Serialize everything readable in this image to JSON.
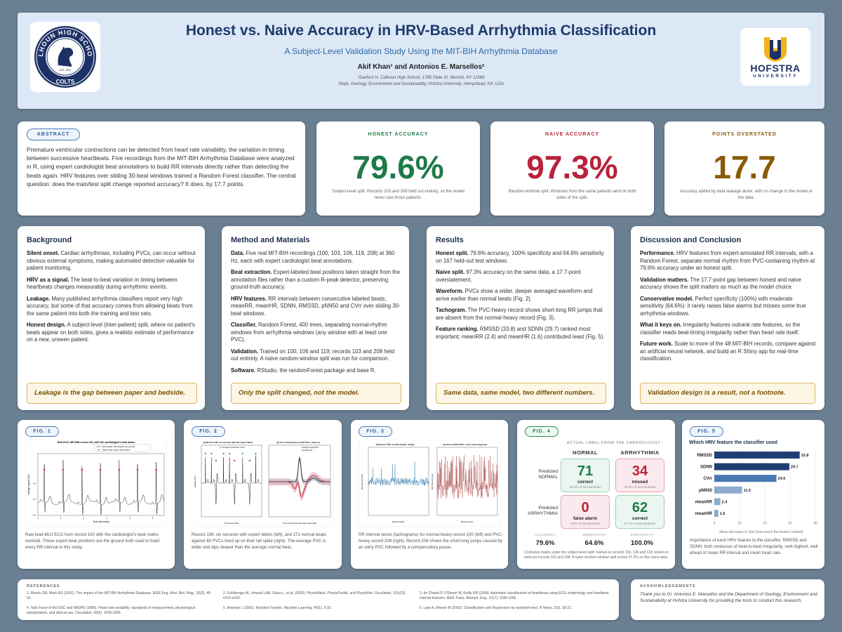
{
  "header": {
    "title": "Honest vs. Naive Accuracy in HRV-Based Arrhythmia Classification",
    "subtitle": "A Subject-Level Validation Study Using the MIT-BIH Arrhythmia Database",
    "authors": "Akif Khan¹   and   Antonios E. Marsellos²",
    "aff1": "¹Sanford H. Calhoun High School, 1786 State St, Merrick, NY 11566",
    "aff2": "²Dept. Geology, Environment and Sustainability, Hofstra University, Hempstead, NY, USA",
    "left_logo_text": "CALHOUN HIGH SCHOOL",
    "left_logo_sub": "COLTS",
    "left_logo_year": "EST. 1952",
    "right_logo_name": "HOFSTRA",
    "right_logo_sub": "UNIVERSITY"
  },
  "abstract": {
    "label": "ABSTRACT",
    "text": "Premature ventricular contractions can be detected from heart rate variability, the variation in timing between successive heartbeats. Five recordings from the MIT-BIH Arrhythmia Database were analyzed in R, using expert cardiologist beat annotations to build RR intervals directly rather than detecting the beats again. HRV features over sliding 30-beat windows trained a Random Forest classifier. The central question: does the train/test split change reported accuracy? It does, by 17.7 points."
  },
  "stats": [
    {
      "label": "HONEST ACCURACY",
      "value": "79.6%",
      "color": "#1e7a48",
      "note": "Subject-level split. Records 103 and 208 held out entirely, so the model never saw those patients."
    },
    {
      "label": "NAIVE ACCURACY",
      "value": "97.3%",
      "color": "#b8233a",
      "note": "Random-window split. Windows from the same patients land on both sides of the split."
    },
    {
      "label": "POINTS OVERSTATED",
      "value": "17.7",
      "color": "#8a5a06",
      "note": "Accuracy added by data leakage alone, with no change to the model or the data."
    }
  ],
  "sections": [
    {
      "title": "Background",
      "paras": [
        {
          "b": "Silent onset.",
          "t": " Cardiac arrhythmias, including PVCs, can occur without obvious external symptoms, making automated detection valuable for patient monitoring."
        },
        {
          "b": "HRV as a signal.",
          "t": " The beat-to-beat variation in timing between heartbeats changes measurably during arrhythmic events."
        },
        {
          "b": "Leakage.",
          "t": " Many published arrhythmia classifiers report very high accuracy, but some of that accuracy comes from allowing beats from the same patient into both the training and test sets."
        },
        {
          "b": "Honest design.",
          "t": " A subject-level (inter-patient) split, where no patient's beats appear on both sides, gives a realistic estimate of performance on a new, unseen patient."
        }
      ],
      "callout": "Leakage is the gap between paper and bedside."
    },
    {
      "title": "Method and Materials",
      "paras": [
        {
          "b": "Data.",
          "t": " Five real MIT-BIH recordings (100, 103, 106, 119, 208) at 360 Hz, each with expert cardiologist beat annotations."
        },
        {
          "b": "Beat extraction.",
          "t": " Expert-labeled beat positions taken straight from the annotation files rather than a custom R-peak detector, preserving ground-truth accuracy."
        },
        {
          "b": "HRV features.",
          "t": " RR intervals between consecutive labeled beats; meanRR, meanHR, SDNN, RMSSD, pNN50 and CVrr over sliding 30-beat windows."
        },
        {
          "b": "Classifier.",
          "t": " Random Forest, 400 trees, separating normal-rhythm windows from arrhythmia windows (any window with at least one PVC)."
        },
        {
          "b": "Validation.",
          "t": " Trained on 100, 106 and 119; records 103 and 208 held out entirely. A naive random-window split was run for comparison."
        },
        {
          "b": "Software.",
          "t": " RStudio, the randomForest package and base R."
        }
      ],
      "callout": "Only the split changed, not the model."
    },
    {
      "title": "Results",
      "paras": [
        {
          "b": "Honest split.",
          "t": " 79.6% accuracy, 100% specificity and 64.6% sensitivity on 167 held-out test windows."
        },
        {
          "b": "Naive split.",
          "t": " 97.3% accuracy on the same data, a 17.7-point overstatement."
        },
        {
          "b": "Waveform.",
          "t": " PVCs show a wider, deeper averaged waveform and arrive earlier than normal beats (Fig. 2)."
        },
        {
          "b": "Tachogram.",
          "t": " The PVC-heavy record shows short-long RR jumps that are absent from the normal-heavy record (Fig. 3)."
        },
        {
          "b": "Feature ranking.",
          "t": " RMSSD (33.8) and SDNN (29.7) ranked most important; meanRR (2.4) and meanHR (1.6) contributed least (Fig. 5)."
        }
      ],
      "callout": "Same data, same model, two different numbers."
    },
    {
      "title": "Discussion and Conclusion",
      "paras": [
        {
          "b": "Performance.",
          "t": " HRV features from expert-annotated RR intervals, with a Random Forest, separate normal rhythm from PVC-containing rhythm at 79.6% accuracy under an honest split."
        },
        {
          "b": "Validation matters.",
          "t": " The 17.7-point gap between honest and naive accuracy shows the split matters as much as the model choice."
        },
        {
          "b": "Conservative model.",
          "t": " Perfect specificity (100%) with moderate sensitivity (64.6%): it rarely raises false alarms but misses some true arrhythmia windows."
        },
        {
          "b": "What it keys on.",
          "t": " Irregularity features outrank rate features, so the classifier reads beat-timing irregularity rather than heart rate itself."
        },
        {
          "b": "Future work.",
          "t": " Scale to more of the 48 MIT-BIH records, compare against an artificial neural network, and build an R Shiny app for real-time classification."
        }
      ],
      "callout": "Validation design is a result, not a footnote."
    }
  ],
  "figures": {
    "f1": {
      "label": "FIG. 1",
      "caption": "Raw lead-MLII ECG from record 100 with the cardiologist's beat marks overlaid. These expert beat positions are the ground truth used to build every RR interval in this study.",
      "plot_title": "Real ECG, MIT-BIH record 100, with the cardiologist's beat marks",
      "legend1": "ECG signal, 360 samples per second",
      "legend2": "Expert beat marks used to label",
      "xlabel": "Time (seconds)",
      "ylabel": "Voltage signal (mV)",
      "xticks": [
        "0",
        "1",
        "2",
        "3",
        "4",
        "5"
      ],
      "yticks": [
        "0.5",
        "0.0",
        "-0.5",
        "-1.0"
      ]
    },
    "f2": {
      "label": "FIG. 2",
      "caption": "Record 106: six seconds with expert labels (left), and 271 normal beats against 60 PVCs lined up on their tall spike (right). The average PVC is wider and dips deeper than the average normal beat.",
      "left_title": "(a) Record 106: six seconds with the expert labels",
      "right_title": "(b) 271 normal beats and 60 PVCs, lined up",
      "left_xlabel": "Time (seconds)",
      "left_ylabel": "Voltage (mV)",
      "right_xlabel": "Time around the tall spike (seconds)",
      "left_legend": "A: premature ventricular contra",
      "right_legend1": "average normal beat",
      "right_legend2": "average PVC"
    },
    "f3": {
      "label": "FIG. 3",
      "caption": "RR interval series (tachograms) for normal-heavy record 100 (left) and PVC-heavy record 208 (right). Record 208 shows the short-long jumps caused by an early PVC followed by a compensatory pause.",
      "left_title": "(a) Record 100: normal rhythm, steady",
      "right_title": "(b) Record 208: PVCs, short and long jumps",
      "xlabel": "Beat number",
      "ylabel": "RR interval (ms)"
    },
    "f4": {
      "label": "FIG. 4",
      "actual_label": "ACTUAL LABEL FROM THE CARDIOLOGIST",
      "col_normal": "NORMAL",
      "col_arrhythmia": "ARRHYTHMIA",
      "row_normal": "Predicted NORMAL",
      "row_arrhythmia": "Predicted ARRHYTHMIA",
      "cells": [
        {
          "value": "71",
          "label": "correct",
          "sub": "42.5% of test windows",
          "color": "#1e7a48",
          "bg": "#eaf6ef",
          "border": "#9fcfb4"
        },
        {
          "value": "34",
          "label": "missed",
          "sub": "20.4% of test windows",
          "color": "#b8233a",
          "bg": "#fbeaed",
          "border": "#e3a5b0"
        },
        {
          "value": "0",
          "label": "false alarm",
          "sub": "0.0% of test windows",
          "color": "#b8233a",
          "bg": "#fbeaed",
          "border": "#e3a5b0"
        },
        {
          "value": "62",
          "label": "correct",
          "sub": "37.1% of test windows",
          "color": "#1e7a48",
          "bg": "#eaf6ef",
          "border": "#9fcfb4"
        }
      ],
      "metrics": [
        {
          "label": "ACCURACY",
          "value": "79.6%"
        },
        {
          "label": "SENSITIVITY",
          "value": "64.6%"
        },
        {
          "label": "SPECIFICITY",
          "value": "100.0%"
        }
      ],
      "caption": "Confusion matrix under the subject-level split: trained on records 100, 106 and 119, tested on held-out records 103 and 208. A naive random-window split scores 97.3% on this same data."
    },
    "f5": {
      "label": "FIG. 5",
      "caption": "Importance of each HRV feature to the classifier. RMSSD and SDNN, both measures of beat-to-beat irregularity, rank highest, well ahead of mean RR interval and mean heart rate."
    }
  },
  "chart_data": [
    {
      "type": "bar",
      "orientation": "horizontal",
      "title": "Which HRV feature the classifier used",
      "categories": [
        "RMSSD",
        "SDNN",
        "CVrr",
        "pNN50",
        "meanRR",
        "meanHR"
      ],
      "values": [
        33.8,
        29.7,
        24.6,
        11.0,
        2.4,
        1.6
      ],
      "xlabel": "Mean decrease in Gini (how much the feature helped)",
      "xlim": [
        0,
        40
      ],
      "xticks": [
        0,
        10,
        20,
        30,
        40
      ],
      "colors": [
        "#1f3f73",
        "#1f3f73",
        "#4878b3",
        "#8eaad0",
        "#8eaad0",
        "#8eaad0"
      ]
    }
  ],
  "references": {
    "label": "REFERENCES",
    "items": [
      "1.  Moody GB, Mark RG (2001). The impact of the MIT-BIH Arrhythmia Database. IEEE Eng. Med. Biol. Mag., 20(3), 45-50.",
      "2.  Goldberger AL, Amaral LAN, Glass L, et al. (2000). PhysioBank, PhysioToolkit, and PhysioNet. Circulation, 101(23), e215-e220.",
      "3.  de Chazal P, O'Dwyer M, Reilly RB (2004). Automatic classification of heartbeats using ECG morphology and heartbeat interval features. IEEE Trans. Biomed. Eng., 51(7), 1196-1206.",
      "4.  Task Force of the ESC and NASPE (1996). Heart rate variability: standards of measurement, physiological interpretation, and clinical use. Circulation, 93(5), 1043-1065.",
      "5.  Breiman L (2001). Random Forests. Machine Learning, 45(1), 5-32.",
      "6.  Liaw A, Wiener M (2002). Classification and Regression by randomForest. R News, 2(3), 18-22."
    ]
  },
  "acknowledgements": {
    "label": "ACKNOWLEDGEMENTS",
    "text": "Thank you to Dr. Antonios E. Marsellos and the Department of Geology, Environment and Sustainability at Hofstra University for providing the tools to conduct this research."
  }
}
